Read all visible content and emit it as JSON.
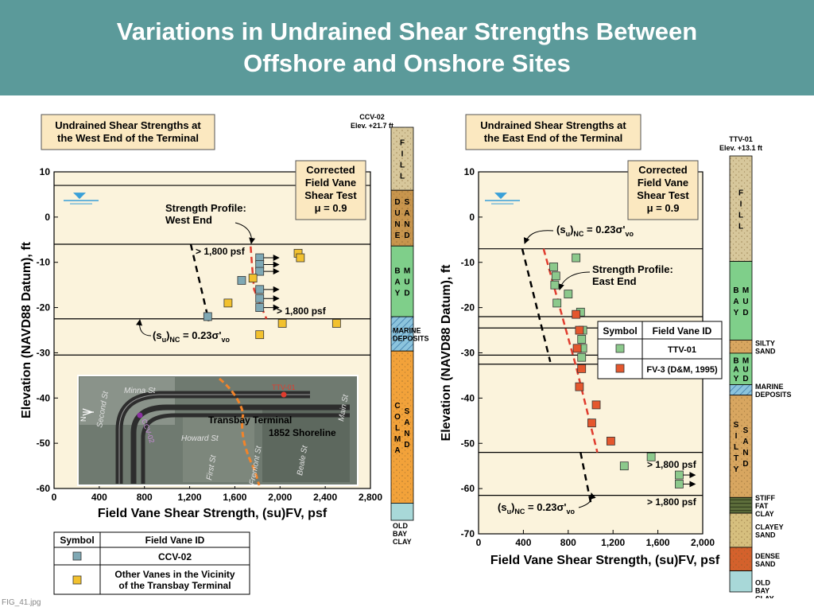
{
  "slide": {
    "title_line1": "Variations in Undrained Shear Strengths Between",
    "title_line2": "Offshore and Onshore Sites",
    "file_caption": "FIG_41.jpg"
  },
  "colors": {
    "title_bg": "#5b9a9a",
    "panel_bg": "#fbf3dc",
    "label_box_bg": "#fbe8c0",
    "ccv02_marker": "#7fa8b4",
    "other_vanes_marker": "#f2c12e",
    "ttv01_marker": "#8cc98c",
    "fv3_marker": "#e4572e",
    "profile_line": "#e03c2e",
    "fill": "#d7c79b",
    "dune_sand": "#c8954d",
    "bay_mud": "#7fcf8a",
    "marine": "#8cc4dd",
    "colma_sand": "#f2a23a",
    "silty_sand": "#d8a660",
    "stiff_fat_clay": "#5e6f3c",
    "clayey_sand": "#d6bf7e",
    "dense_sand": "#d4612c",
    "old_bay_clay": "#a8d8d8"
  },
  "chart_data": [
    {
      "type": "scatter",
      "title": "Undrained Shear Strengths at the West End of the Terminal",
      "title_lines": [
        "Undrained Shear Strengths at",
        "the West End of the Terminal"
      ],
      "xlabel": "Field Vane Shear Strength, (su)FV, psf",
      "ylabel": "Elevation (NAVD88 Datum), ft",
      "xlim": [
        0,
        2800
      ],
      "ylim": [
        -60,
        10
      ],
      "xticks": [
        "0",
        "400",
        "800",
        "1,200",
        "1,600",
        "2,000",
        "2,400",
        "2,800"
      ],
      "yticks": [
        "10",
        "0",
        "-10",
        "-20",
        "-30",
        "-40",
        "-50",
        "-60"
      ],
      "corrected_box": [
        "Corrected",
        "Field Vane",
        "Shear Test",
        "μ = 0.9"
      ],
      "boundaries": [
        7,
        -6,
        -22.5,
        -30.5
      ],
      "water_table_elev": 4,
      "series": [
        {
          "name": "CCV-02",
          "marker": "square",
          "points": [
            [
              1360,
              -22
            ],
            [
              1660,
              -14
            ],
            [
              1820,
              -9
            ],
            [
              1820,
              -10.5
            ],
            [
              1820,
              -12
            ],
            [
              1820,
              -16
            ],
            [
              1820,
              -18
            ],
            [
              1820,
              -20
            ]
          ]
        },
        {
          "name": "Other Vanes in the Vicinity of the Transbay Terminal",
          "marker": "square",
          "points": [
            [
              1540,
              -19
            ],
            [
              1760,
              -13.5
            ],
            [
              2160,
              -8
            ],
            [
              2180,
              -9
            ],
            [
              2020,
              -23.5
            ],
            [
              1820,
              -26
            ],
            [
              2500,
              -23.5
            ]
          ]
        }
      ],
      "arrow_points": [
        [
          1820,
          -9
        ],
        [
          1820,
          -10.5
        ],
        [
          1820,
          -12
        ],
        [
          1820,
          -16
        ],
        [
          1820,
          -18
        ],
        [
          1820,
          -20
        ]
      ],
      "nc_line": [
        [
          1210,
          -6
        ],
        [
          1370,
          -23
        ]
      ],
      "profile_line": [
        [
          1740,
          -6.5
        ],
        [
          1750,
          -10
        ],
        [
          1770,
          -16
        ],
        [
          1880,
          -22.5
        ]
      ],
      "annotations": {
        "profile_label_1": "Strength Profile:",
        "profile_label_2": "West End",
        "gt_1800_upper": "> 1,800 psf",
        "gt_1800_lower": "> 1,800 psf",
        "nc_label_main": "(s",
        "nc_label_sub1": "u",
        "nc_label_mid": ")",
        "nc_label_sub2": "NC",
        "nc_label_eq": " = 0.23σ'",
        "nc_label_sub3": "vo"
      },
      "map_labels": {
        "street_minna": "Minna St",
        "street_howard": "Howard St",
        "street_second": "Second St",
        "street_first": "First St",
        "street_fremont": "Fremont St",
        "street_beale": "Beale St",
        "street_main": "Main St",
        "terminal": "Transbay Terminal",
        "shoreline": "1852 Shoreline",
        "ttv01": "TTV-01",
        "ccv02": "CCV-02",
        "north": "N"
      },
      "legend": {
        "header_symbol": "Symbol",
        "header_id": "Field Vane ID",
        "row1": "CCV-02",
        "row2_line1": "Other Vanes in the Vicinity",
        "row2_line2": "of the Transbay Terminal"
      },
      "boring": {
        "name": "CCV-02",
        "elev": "Elev. +21.7 ft",
        "layers": [
          {
            "label": "FILL",
            "top": 21.7,
            "bottom": 7,
            "color_key": "fill"
          },
          {
            "label": "DUNE SAND",
            "top": 7,
            "bottom": -6,
            "color_key": "dune_sand"
          },
          {
            "label": "BAY MUD",
            "top": -6,
            "bottom": -22.5,
            "color_key": "bay_mud"
          },
          {
            "label": "MARINE DEPOSITS",
            "top": -22.5,
            "bottom": -30.5,
            "color_key": "marine"
          },
          {
            "label": "COLMA SAND",
            "top": -30.5,
            "bottom": -66,
            "color_key": "colma_sand"
          },
          {
            "label": "OLD BAY CLAY",
            "top": -66,
            "bottom": -70,
            "color_key": "old_bay_clay"
          }
        ]
      }
    },
    {
      "type": "scatter",
      "title": "Undrained Shear Strengths at the East End of the Terminal",
      "title_lines": [
        "Undrained Shear Strengths at",
        "the East End of the Terminal"
      ],
      "xlabel": "Field Vane Shear Strength, (su)FV, psf",
      "ylabel": "Elevation (NAVD88 Datum), ft",
      "xlim": [
        0,
        2000
      ],
      "ylim": [
        -70,
        10
      ],
      "xticks": [
        "0",
        "400",
        "800",
        "1,200",
        "1,600",
        "2,000"
      ],
      "yticks": [
        "10",
        "0",
        "-10",
        "-20",
        "-30",
        "-40",
        "-50",
        "-60",
        "-70"
      ],
      "corrected_box": [
        "Corrected",
        "Field Vane",
        "Shear Test",
        "μ = 0.9"
      ],
      "boundaries": [
        -7,
        -22,
        -24.5,
        -30.5,
        -32.5,
        -52,
        -61.5
      ],
      "water_table_elev": 4,
      "series": [
        {
          "name": "TTV-01",
          "marker": "square",
          "points": [
            [
              870,
              -9
            ],
            [
              670,
              -11
            ],
            [
              690,
              -13
            ],
            [
              680,
              -15
            ],
            [
              700,
              -19
            ],
            [
              800,
              -17
            ],
            [
              910,
              -21
            ],
            [
              930,
              -25
            ],
            [
              920,
              -27
            ],
            [
              930,
              -29
            ],
            [
              920,
              -31
            ],
            [
              1300,
              -55
            ],
            [
              1540,
              -53
            ],
            [
              1790,
              -57
            ],
            [
              1790,
              -59
            ]
          ]
        },
        {
          "name": "FV-3 (D&M, 1995)",
          "marker": "square",
          "points": [
            [
              870,
              -21.5
            ],
            [
              900,
              -25
            ],
            [
              880,
              -29
            ],
            [
              920,
              -33.5
            ],
            [
              900,
              -37.5
            ],
            [
              1050,
              -41.5
            ],
            [
              1010,
              -45.5
            ],
            [
              1180,
              -49.5
            ]
          ]
        }
      ],
      "arrow_points": [
        [
          1790,
          -57
        ],
        [
          1790,
          -59
        ]
      ],
      "nc_line": [
        [
          390,
          -7
        ],
        [
          640,
          -32
        ]
      ],
      "nc_line2": [
        [
          910,
          -52
        ],
        [
          1000,
          -63
        ]
      ],
      "profile_line": [
        [
          580,
          -7
        ],
        [
          870,
          -33
        ],
        [
          1060,
          -52
        ]
      ],
      "annotations": {
        "profile_label_1": "Strength Profile:",
        "profile_label_2": "East End",
        "gt_1800_upper": "> 1,800 psf",
        "gt_1800_lower": "> 1,800 psf",
        "nc_label_main": "(s",
        "nc_label_sub1": "u",
        "nc_label_mid": ")",
        "nc_label_sub2": "NC",
        "nc_label_eq": " = 0.23σ'",
        "nc_label_sub3": "vo"
      },
      "legend": {
        "header_symbol": "Symbol",
        "header_id": "Field Vane ID",
        "row1": "TTV-01",
        "row2": "FV-3 (D&M, 1995)"
      },
      "boring": {
        "name": "TTV-01",
        "elev": "Elev. +13.1 ft",
        "layers": [
          {
            "label": "FILL",
            "top": 13.1,
            "bottom": -7,
            "color_key": "fill"
          },
          {
            "label": "BAY MUD",
            "top": -7,
            "bottom": -22,
            "color_key": "bay_mud"
          },
          {
            "label": "SILTY SAND",
            "top": -22,
            "bottom": -24.5,
            "color_key": "silty_sand"
          },
          {
            "label": "BAY MUD",
            "top": -24.5,
            "bottom": -30.5,
            "color_key": "bay_mud"
          },
          {
            "label": "MARINE DEPOSITS",
            "top": -30.5,
            "bottom": -32.5,
            "color_key": "marine"
          },
          {
            "label": "SILTY SAND",
            "top": -32.5,
            "bottom": -52,
            "color_key": "silty_sand"
          },
          {
            "label": "STIFF FAT CLAY",
            "top": -52,
            "bottom": -55,
            "color_key": "stiff_fat_clay"
          },
          {
            "label": "CLAYEY SAND",
            "top": -55,
            "bottom": -61.5,
            "color_key": "clayey_sand"
          },
          {
            "label": "DENSE SAND",
            "top": -61.5,
            "bottom": -66,
            "color_key": "dense_sand"
          },
          {
            "label": "OLD BAY CLAY",
            "top": -66,
            "bottom": -70,
            "color_key": "old_bay_clay"
          }
        ]
      }
    }
  ]
}
